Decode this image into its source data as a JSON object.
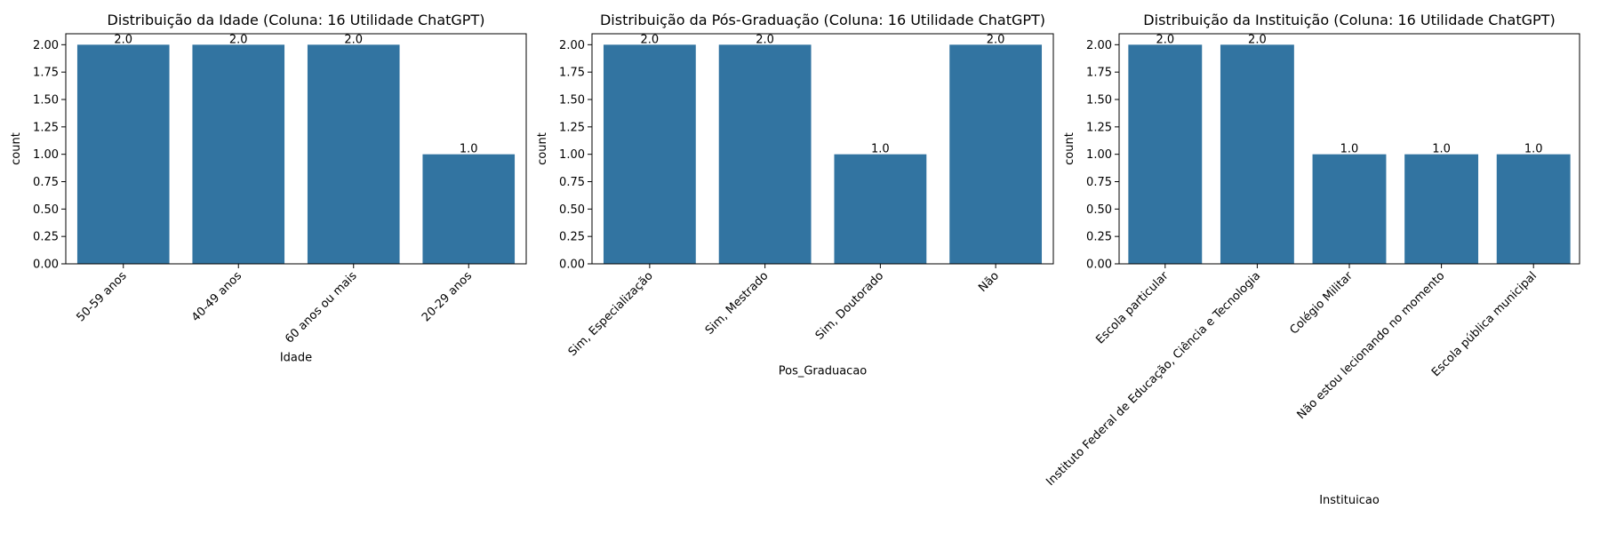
{
  "chart_data": [
    {
      "type": "bar",
      "title": "Distribuição da Idade (Coluna: 16 Utilidade ChatGPT)",
      "xlabel": "Idade",
      "ylabel": "count",
      "categories": [
        "50-59 anos",
        "40-49 anos",
        "60 anos ou mais",
        "20-29 anos"
      ],
      "values": [
        2.0,
        2.0,
        2.0,
        1.0
      ],
      "value_labels": [
        "2.0",
        "2.0",
        "2.0",
        "1.0"
      ],
      "ylim": [
        0,
        2.1
      ],
      "yticks": [
        "0.00",
        "0.25",
        "0.50",
        "0.75",
        "1.00",
        "1.25",
        "1.50",
        "1.75",
        "2.00"
      ],
      "tick_rotation": 45,
      "grid": false,
      "bar_color": "#3274a1"
    },
    {
      "type": "bar",
      "title": "Distribuição da Pós-Graduação (Coluna: 16 Utilidade ChatGPT)",
      "xlabel": "Pos_Graduacao",
      "ylabel": "count",
      "categories": [
        "Sim, Especialização",
        "Sim, Mestrado",
        "Sim, Doutorado",
        "Não"
      ],
      "values": [
        2.0,
        2.0,
        1.0,
        2.0
      ],
      "value_labels": [
        "2.0",
        "2.0",
        "1.0",
        "2.0"
      ],
      "ylim": [
        0,
        2.1
      ],
      "yticks": [
        "0.00",
        "0.25",
        "0.50",
        "0.75",
        "1.00",
        "1.25",
        "1.50",
        "1.75",
        "2.00"
      ],
      "tick_rotation": 45,
      "grid": false,
      "bar_color": "#3274a1"
    },
    {
      "type": "bar",
      "title": "Distribuição da Instituição (Coluna: 16 Utilidade ChatGPT)",
      "xlabel": "Instituicao",
      "ylabel": "count",
      "categories": [
        "Escola particular",
        "Instituto Federal de Educação, Ciência e Tecnologia",
        "Colégio Militar",
        "Não estou lecionando no momento",
        "Escola pública municipal"
      ],
      "values": [
        2.0,
        2.0,
        1.0,
        1.0,
        1.0
      ],
      "value_labels": [
        "2.0",
        "2.0",
        "1.0",
        "1.0",
        "1.0"
      ],
      "ylim": [
        0,
        2.1
      ],
      "yticks": [
        "0.00",
        "0.25",
        "0.50",
        "0.75",
        "1.00",
        "1.25",
        "1.50",
        "1.75",
        "2.00"
      ],
      "tick_rotation": 45,
      "grid": false,
      "bar_color": "#3274a1"
    }
  ]
}
